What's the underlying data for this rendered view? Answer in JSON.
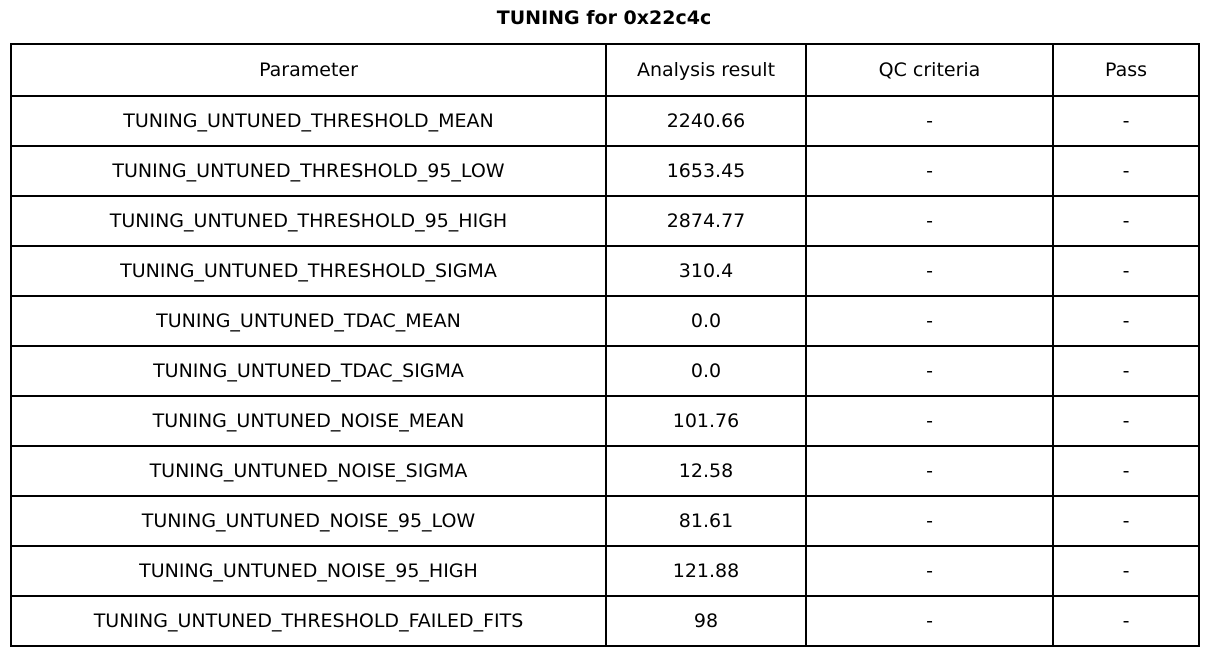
{
  "page_title": "TUNING for 0x22c4c",
  "colors": {
    "background": "#ffffff",
    "border": "#000000",
    "text": "#000000"
  },
  "chart_data": {
    "type": "table",
    "title": "TUNING for 0x22c4c",
    "columns": [
      "Parameter",
      "Analysis result",
      "QC criteria",
      "Pass"
    ],
    "rows": [
      [
        "TUNING_UNTUNED_THRESHOLD_MEAN",
        "2240.66",
        "-",
        "-"
      ],
      [
        "TUNING_UNTUNED_THRESHOLD_95_LOW",
        "1653.45",
        "-",
        "-"
      ],
      [
        "TUNING_UNTUNED_THRESHOLD_95_HIGH",
        "2874.77",
        "-",
        "-"
      ],
      [
        "TUNING_UNTUNED_THRESHOLD_SIGMA",
        "310.4",
        "-",
        "-"
      ],
      [
        "TUNING_UNTUNED_TDAC_MEAN",
        "0.0",
        "-",
        "-"
      ],
      [
        "TUNING_UNTUNED_TDAC_SIGMA",
        "0.0",
        "-",
        "-"
      ],
      [
        "TUNING_UNTUNED_NOISE_MEAN",
        "101.76",
        "-",
        "-"
      ],
      [
        "TUNING_UNTUNED_NOISE_SIGMA",
        "12.58",
        "-",
        "-"
      ],
      [
        "TUNING_UNTUNED_NOISE_95_LOW",
        "81.61",
        "-",
        "-"
      ],
      [
        "TUNING_UNTUNED_NOISE_95_HIGH",
        "121.88",
        "-",
        "-"
      ],
      [
        "TUNING_UNTUNED_THRESHOLD_FAILED_FITS",
        "98",
        "-",
        "-"
      ]
    ]
  }
}
